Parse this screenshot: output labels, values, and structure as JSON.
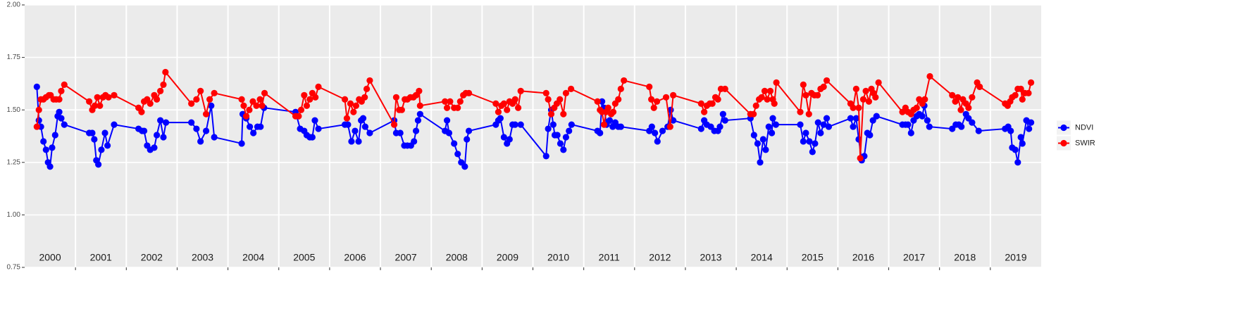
{
  "chart_data": {
    "type": "line",
    "ylim": [
      0.75,
      2.0
    ],
    "yticks": [
      {
        "value": 0.75,
        "label": "0.75"
      },
      {
        "value": 1.0,
        "label": "1.00"
      },
      {
        "value": 1.25,
        "label": "1.25"
      },
      {
        "value": 1.5,
        "label": "1.50"
      },
      {
        "value": 1.75,
        "label": "1.75"
      },
      {
        "value": 2.0,
        "label": "2.00"
      }
    ],
    "xlim": [
      2000,
      2020
    ],
    "xticks": [
      2001,
      2002,
      2003,
      2004,
      2005,
      2006,
      2007,
      2008,
      2009,
      2010,
      2011,
      2012,
      2013,
      2014,
      2015,
      2016,
      2017,
      2018,
      2019
    ],
    "x_labels": [
      {
        "value": 2000.5,
        "label": "2000"
      },
      {
        "value": 2001.5,
        "label": "2001"
      },
      {
        "value": 2002.5,
        "label": "2002"
      },
      {
        "value": 2003.5,
        "label": "2003"
      },
      {
        "value": 2004.5,
        "label": "2004"
      },
      {
        "value": 2005.5,
        "label": "2005"
      },
      {
        "value": 2006.5,
        "label": "2006"
      },
      {
        "value": 2007.5,
        "label": "2007"
      },
      {
        "value": 2008.5,
        "label": "2008"
      },
      {
        "value": 2009.5,
        "label": "2009"
      },
      {
        "value": 2010.5,
        "label": "2010"
      },
      {
        "value": 2011.5,
        "label": "2011"
      },
      {
        "value": 2012.5,
        "label": "2012"
      },
      {
        "value": 2013.5,
        "label": "2013"
      },
      {
        "value": 2014.5,
        "label": "2014"
      },
      {
        "value": 2015.5,
        "label": "2015"
      },
      {
        "value": 2016.5,
        "label": "2016"
      },
      {
        "value": 2017.5,
        "label": "2017"
      },
      {
        "value": 2018.5,
        "label": "2018"
      },
      {
        "value": 2019.5,
        "label": "2019"
      }
    ],
    "grid": true,
    "legend": "right",
    "series": [
      {
        "name": "NDVI",
        "color": "#0000ff",
        "x": [
          2000.24,
          2000.28,
          2000.32,
          2000.37,
          2000.42,
          2000.46,
          2000.5,
          2000.54,
          2000.6,
          2000.65,
          2000.68,
          2000.72,
          2000.78,
          2001.27,
          2001.33,
          2001.37,
          2001.41,
          2001.45,
          2001.51,
          2001.58,
          2001.63,
          2001.76,
          2002.24,
          2002.31,
          2002.35,
          2002.41,
          2002.47,
          2002.55,
          2002.6,
          2002.67,
          2002.73,
          2002.78,
          2003.28,
          2003.38,
          2003.46,
          2003.57,
          2003.67,
          2003.73,
          2004.27,
          2004.29,
          2004.36,
          2004.43,
          2004.5,
          2004.58,
          2004.64,
          2004.71,
          2005.33,
          2005.42,
          2005.5,
          2005.55,
          2005.61,
          2005.66,
          2005.71,
          2005.78,
          2006.3,
          2006.36,
          2006.43,
          2006.5,
          2006.57,
          2006.62,
          2006.66,
          2006.7,
          2006.79,
          2007.27,
          2007.31,
          2007.39,
          2007.47,
          2007.53,
          2007.6,
          2007.66,
          2007.7,
          2007.74,
          2007.78,
          2008.27,
          2008.31,
          2008.35,
          2008.45,
          2008.52,
          2008.59,
          2008.66,
          2008.7,
          2008.74,
          2009.27,
          2009.32,
          2009.36,
          2009.43,
          2009.49,
          2009.54,
          2009.6,
          2009.65,
          2009.76,
          2010.26,
          2010.3,
          2010.36,
          2010.4,
          2010.43,
          2010.48,
          2010.54,
          2010.6,
          2010.65,
          2010.71,
          2010.76,
          2011.27,
          2011.32,
          2011.36,
          2011.4,
          2011.45,
          2011.51,
          2011.57,
          2011.62,
          2011.68,
          2011.73,
          2012.29,
          2012.34,
          2012.4,
          2012.45,
          2012.55,
          2012.65,
          2012.71,
          2012.76,
          2013.31,
          2013.37,
          2013.42,
          2013.5,
          2013.57,
          2013.64,
          2013.68,
          2013.74,
          2013.78,
          2014.28,
          2014.35,
          2014.42,
          2014.47,
          2014.53,
          2014.58,
          2014.64,
          2014.7,
          2014.72,
          2014.78,
          2015.26,
          2015.32,
          2015.37,
          2015.44,
          2015.5,
          2015.55,
          2015.61,
          2015.66,
          2015.72,
          2015.78,
          2015.82,
          2016.25,
          2016.3,
          2016.36,
          2016.41,
          2016.47,
          2016.52,
          2016.58,
          2016.63,
          2016.69,
          2016.76,
          2017.27,
          2017.33,
          2017.38,
          2017.44,
          2017.49,
          2017.55,
          2017.6,
          2017.66,
          2017.7,
          2017.76,
          2017.8,
          2018.25,
          2018.32,
          2018.38,
          2018.43,
          2018.52,
          2018.57,
          2018.64,
          2018.77,
          2019.29,
          2019.35,
          2019.4,
          2019.43,
          2019.49,
          2019.54,
          2019.6,
          2019.63,
          2019.71,
          2019.76,
          2019.8
        ],
        "values": [
          1.61,
          1.45,
          1.42,
          1.35,
          1.31,
          1.25,
          1.23,
          1.32,
          1.38,
          1.47,
          1.49,
          1.46,
          1.43,
          1.39,
          1.39,
          1.36,
          1.26,
          1.24,
          1.31,
          1.39,
          1.33,
          1.43,
          1.41,
          1.4,
          1.4,
          1.33,
          1.31,
          1.32,
          1.38,
          1.45,
          1.37,
          1.44,
          1.44,
          1.41,
          1.35,
          1.4,
          1.52,
          1.37,
          1.34,
          1.48,
          1.46,
          1.42,
          1.39,
          1.42,
          1.42,
          1.51,
          1.49,
          1.41,
          1.4,
          1.38,
          1.37,
          1.37,
          1.45,
          1.41,
          1.43,
          1.43,
          1.35,
          1.4,
          1.35,
          1.45,
          1.46,
          1.42,
          1.39,
          1.45,
          1.39,
          1.39,
          1.33,
          1.33,
          1.33,
          1.35,
          1.4,
          1.45,
          1.48,
          1.4,
          1.45,
          1.39,
          1.34,
          1.29,
          1.25,
          1.23,
          1.36,
          1.4,
          1.43,
          1.45,
          1.46,
          1.37,
          1.34,
          1.36,
          1.43,
          1.43,
          1.43,
          1.28,
          1.41,
          1.5,
          1.43,
          1.38,
          1.38,
          1.34,
          1.31,
          1.37,
          1.4,
          1.43,
          1.4,
          1.39,
          1.54,
          1.51,
          1.43,
          1.45,
          1.42,
          1.44,
          1.42,
          1.42,
          1.4,
          1.42,
          1.39,
          1.35,
          1.4,
          1.42,
          1.5,
          1.45,
          1.41,
          1.45,
          1.43,
          1.42,
          1.4,
          1.4,
          1.42,
          1.48,
          1.45,
          1.46,
          1.38,
          1.34,
          1.25,
          1.36,
          1.31,
          1.42,
          1.39,
          1.46,
          1.43,
          1.43,
          1.35,
          1.39,
          1.35,
          1.3,
          1.34,
          1.44,
          1.39,
          1.43,
          1.46,
          1.42,
          1.46,
          1.42,
          1.46,
          1.36,
          1.26,
          1.28,
          1.39,
          1.38,
          1.45,
          1.47,
          1.43,
          1.43,
          1.43,
          1.39,
          1.45,
          1.47,
          1.48,
          1.47,
          1.52,
          1.45,
          1.42,
          1.41,
          1.43,
          1.43,
          1.42,
          1.48,
          1.46,
          1.44,
          1.4,
          1.41,
          1.42,
          1.4,
          1.32,
          1.31,
          1.25,
          1.37,
          1.34,
          1.45,
          1.41,
          1.44
        ]
      },
      {
        "name": "SWIR",
        "color": "#ff0000",
        "x": [
          2000.24,
          2000.28,
          2000.32,
          2000.37,
          2000.42,
          2000.48,
          2000.51,
          2000.57,
          2000.62,
          2000.68,
          2000.72,
          2000.78,
          2001.27,
          2001.33,
          2001.38,
          2001.43,
          2001.48,
          2001.54,
          2001.59,
          2001.65,
          2001.76,
          2002.24,
          2002.3,
          2002.35,
          2002.41,
          2002.47,
          2002.55,
          2002.6,
          2002.67,
          2002.73,
          2002.77,
          2003.28,
          2003.38,
          2003.46,
          2003.57,
          2003.64,
          2003.73,
          2004.27,
          2004.31,
          2004.36,
          2004.42,
          2004.49,
          2004.56,
          2004.63,
          2004.67,
          2004.72,
          2005.33,
          2005.39,
          2005.44,
          2005.5,
          2005.55,
          2005.61,
          2005.66,
          2005.72,
          2005.78,
          2006.3,
          2006.34,
          2006.41,
          2006.47,
          2006.52,
          2006.58,
          2006.63,
          2006.69,
          2006.73,
          2006.79,
          2007.27,
          2007.31,
          2007.37,
          2007.42,
          2007.48,
          2007.53,
          2007.59,
          2007.65,
          2007.7,
          2007.76,
          2007.78,
          2008.27,
          2008.31,
          2008.37,
          2008.45,
          2008.52,
          2008.57,
          2008.63,
          2008.68,
          2008.74,
          2009.27,
          2009.32,
          2009.38,
          2009.43,
          2009.49,
          2009.54,
          2009.6,
          2009.65,
          2009.71,
          2009.76,
          2010.26,
          2010.3,
          2010.36,
          2010.42,
          2010.47,
          2010.53,
          2010.6,
          2010.65,
          2010.75,
          2011.27,
          2011.32,
          2011.36,
          2011.4,
          2011.44,
          2011.48,
          2011.54,
          2011.58,
          2011.62,
          2011.68,
          2011.73,
          2011.79,
          2012.29,
          2012.33,
          2012.38,
          2012.44,
          2012.62,
          2012.7,
          2012.76,
          2013.31,
          2013.37,
          2013.42,
          2013.48,
          2013.53,
          2013.59,
          2013.64,
          2013.7,
          2013.78,
          2014.28,
          2014.34,
          2014.39,
          2014.45,
          2014.5,
          2014.56,
          2014.61,
          2014.67,
          2014.72,
          2014.75,
          2014.79,
          2015.26,
          2015.32,
          2015.37,
          2015.43,
          2015.48,
          2015.54,
          2015.6,
          2015.66,
          2015.72,
          2015.78,
          2016.25,
          2016.3,
          2016.36,
          2016.41,
          2016.44,
          2016.5,
          2016.55,
          2016.61,
          2016.66,
          2016.7,
          2016.74,
          2016.8,
          2017.27,
          2017.33,
          2017.38,
          2017.44,
          2017.49,
          2017.55,
          2017.6,
          2017.66,
          2017.71,
          2017.81,
          2018.25,
          2018.31,
          2018.36,
          2018.42,
          2018.46,
          2018.52,
          2018.57,
          2018.64,
          2018.74,
          2018.79,
          2019.29,
          2019.34,
          2019.39,
          2019.43,
          2019.49,
          2019.54,
          2019.6,
          2019.63,
          2019.68,
          2019.75,
          2019.8
        ],
        "values": [
          1.42,
          1.5,
          1.55,
          1.55,
          1.56,
          1.57,
          1.57,
          1.55,
          1.55,
          1.55,
          1.59,
          1.62,
          1.54,
          1.5,
          1.52,
          1.56,
          1.52,
          1.56,
          1.57,
          1.56,
          1.57,
          1.51,
          1.49,
          1.54,
          1.55,
          1.53,
          1.57,
          1.55,
          1.59,
          1.62,
          1.68,
          1.53,
          1.55,
          1.59,
          1.48,
          1.55,
          1.58,
          1.55,
          1.52,
          1.47,
          1.5,
          1.54,
          1.52,
          1.55,
          1.52,
          1.58,
          1.47,
          1.47,
          1.5,
          1.57,
          1.52,
          1.55,
          1.58,
          1.56,
          1.61,
          1.55,
          1.46,
          1.53,
          1.49,
          1.52,
          1.55,
          1.54,
          1.56,
          1.6,
          1.64,
          1.43,
          1.56,
          1.5,
          1.5,
          1.55,
          1.55,
          1.56,
          1.56,
          1.57,
          1.59,
          1.52,
          1.54,
          1.51,
          1.54,
          1.51,
          1.51,
          1.54,
          1.57,
          1.58,
          1.58,
          1.53,
          1.49,
          1.52,
          1.53,
          1.5,
          1.54,
          1.53,
          1.55,
          1.51,
          1.59,
          1.58,
          1.55,
          1.48,
          1.51,
          1.53,
          1.55,
          1.48,
          1.58,
          1.6,
          1.54,
          1.5,
          1.49,
          1.43,
          1.49,
          1.51,
          1.48,
          1.49,
          1.53,
          1.55,
          1.6,
          1.64,
          1.61,
          1.55,
          1.51,
          1.54,
          1.56,
          1.42,
          1.57,
          1.53,
          1.49,
          1.52,
          1.53,
          1.53,
          1.56,
          1.55,
          1.6,
          1.6,
          1.48,
          1.48,
          1.52,
          1.55,
          1.56,
          1.59,
          1.55,
          1.59,
          1.55,
          1.53,
          1.63,
          1.49,
          1.62,
          1.57,
          1.48,
          1.58,
          1.57,
          1.57,
          1.6,
          1.61,
          1.64,
          1.53,
          1.51,
          1.6,
          1.51,
          1.27,
          1.55,
          1.59,
          1.54,
          1.6,
          1.58,
          1.56,
          1.63,
          1.49,
          1.51,
          1.49,
          1.48,
          1.5,
          1.51,
          1.55,
          1.53,
          1.55,
          1.66,
          1.57,
          1.54,
          1.56,
          1.5,
          1.55,
          1.53,
          1.51,
          1.56,
          1.63,
          1.61,
          1.53,
          1.52,
          1.54,
          1.56,
          1.57,
          1.6,
          1.6,
          1.55,
          1.58,
          1.58,
          1.63
        ]
      }
    ]
  }
}
